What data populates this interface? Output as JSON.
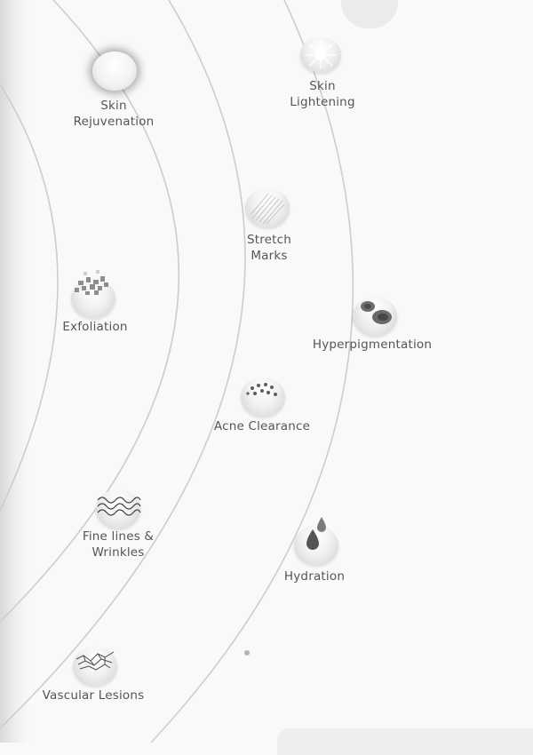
{
  "treatments": [
    {
      "id": "skin-rejuvenation",
      "label": "Skin Rejuvenation",
      "icon": "glowing-orb-icon"
    },
    {
      "id": "skin-lightening",
      "label": "Skin Lightening",
      "icon": "sunburst-icon"
    },
    {
      "id": "stretch-marks",
      "label": "Stretch Marks",
      "icon": "striated-skin-icon"
    },
    {
      "id": "exfoliation",
      "label": "Exfoliation",
      "icon": "skin-flakes-icon"
    },
    {
      "id": "hyperpigmentation",
      "label": "Hyperpigmentation",
      "icon": "dark-spots-icon"
    },
    {
      "id": "acne-clearance",
      "label": "Acne Clearance",
      "icon": "acne-dots-icon"
    },
    {
      "id": "fine-lines-wrinkles",
      "label": "Fine lines & Wrinkles",
      "icon": "wavy-lines-icon"
    },
    {
      "id": "hydration",
      "label": "Hydration",
      "icon": "water-drops-icon"
    },
    {
      "id": "vascular-lesions",
      "label": "Vascular Lesions",
      "icon": "veins-icon"
    }
  ]
}
